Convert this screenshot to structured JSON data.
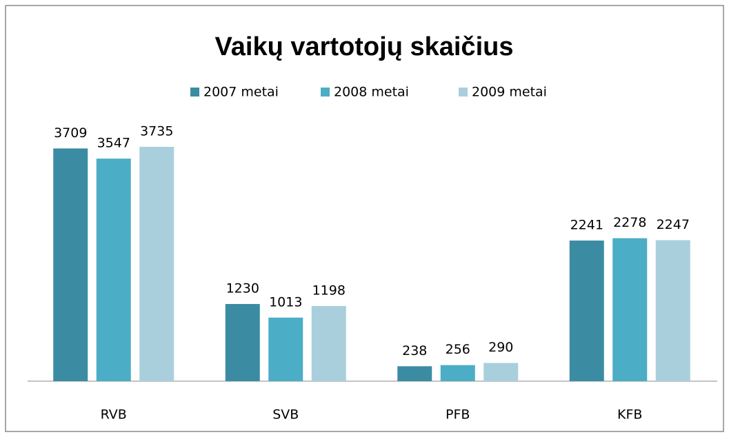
{
  "chart_data": {
    "type": "bar",
    "title": "Vaikų vartotojų skaičius",
    "categories": [
      "RVB",
      "SVB",
      "PFB",
      "KFB"
    ],
    "series": [
      {
        "name": "2007 metai",
        "color": "#3b8ca3",
        "values": [
          3709,
          1230,
          238,
          2241
        ]
      },
      {
        "name": "2008 metai",
        "color": "#4badc6",
        "values": [
          3547,
          1013,
          256,
          2278
        ]
      },
      {
        "name": "2009 metai",
        "color": "#a9cfdc",
        "values": [
          3735,
          1198,
          290,
          2247
        ]
      }
    ],
    "legend": "top"
  }
}
